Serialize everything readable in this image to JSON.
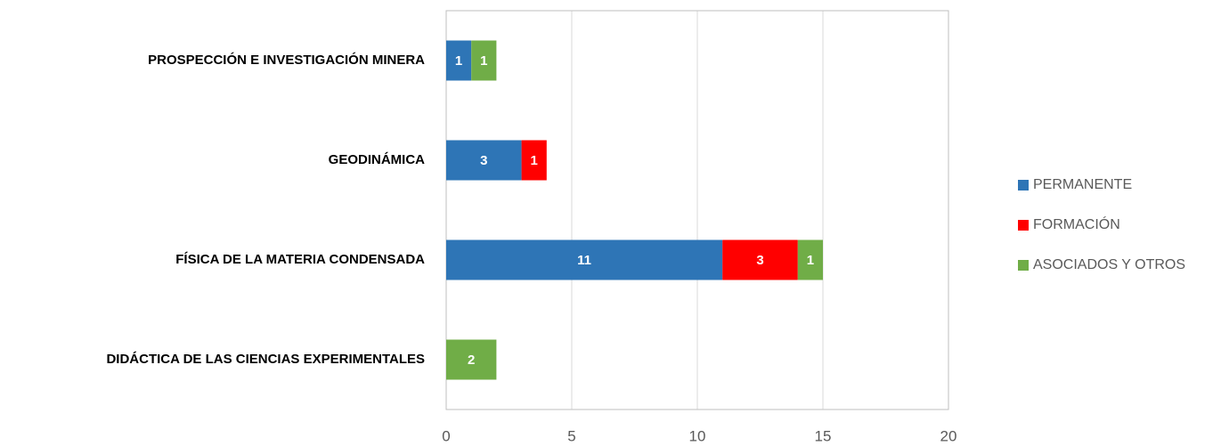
{
  "chart_data": {
    "type": "bar",
    "orientation": "horizontal",
    "stacked": true,
    "categories": [
      "PROSPECCIÓN E INVESTIGACIÓN MINERA",
      "GEODINÁMICA",
      "FÍSICA DE LA MATERIA CONDENSADA",
      "DIDÁCTICA DE LAS CIENCIAS EXPERIMENTALES"
    ],
    "series": [
      {
        "name": "PERMANENTE",
        "color": "#2e75b6",
        "values": [
          1,
          3,
          11,
          null
        ]
      },
      {
        "name": "FORMACIÓN",
        "color": "#ff0000",
        "values": [
          null,
          1,
          3,
          null
        ]
      },
      {
        "name": "ASOCIADOS Y OTROS",
        "color": "#70ad47",
        "values": [
          1,
          null,
          1,
          2
        ]
      }
    ],
    "xlim": [
      0,
      20
    ],
    "xticks": [
      0,
      5,
      10,
      15,
      20
    ],
    "grid": true,
    "legend": "right"
  }
}
